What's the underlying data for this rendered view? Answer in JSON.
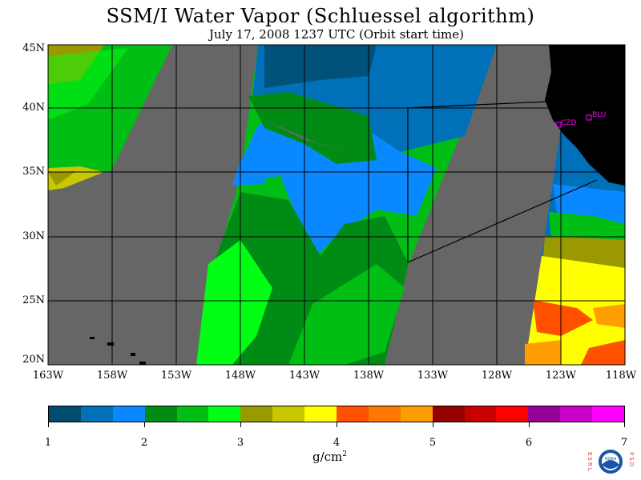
{
  "header": {
    "title": "SSM/I Water Vapor (Schluessel algorithm)",
    "subtitle": "July 17, 2008  1237 UTC  (Orbit start time)"
  },
  "axes": {
    "lat_labels": [
      "45N",
      "40N",
      "35N",
      "30N",
      "25N",
      "20N"
    ],
    "lon_labels": [
      "163W",
      "158W",
      "153W",
      "148W",
      "143W",
      "138W",
      "133W",
      "128W",
      "123W",
      "118W"
    ]
  },
  "sites": [
    {
      "label": "CZD",
      "color": "#ff00ff"
    },
    {
      "label": "BLU",
      "color": "#ff00ff"
    }
  ],
  "colorbar": {
    "tick_labels": [
      "1",
      "2",
      "3",
      "4",
      "5",
      "6",
      "7"
    ],
    "units": "g/cm",
    "units_exp": "2",
    "colors": [
      "#004c6e",
      "#0070b8",
      "#0a88ff",
      "#008c14",
      "#00be14",
      "#00ff14",
      "#9a9a00",
      "#c8c800",
      "#ffff00",
      "#ff5000",
      "#ff7800",
      "#ff9e00",
      "#960000",
      "#c80000",
      "#ff0000",
      "#960096",
      "#c800c8",
      "#ff00ff"
    ]
  },
  "map_colors": {
    "land": "#000000",
    "no_data": "#666666"
  },
  "logo": {
    "left_letters": "ESRL",
    "right_letters": "PSD",
    "center": "NOAA"
  }
}
